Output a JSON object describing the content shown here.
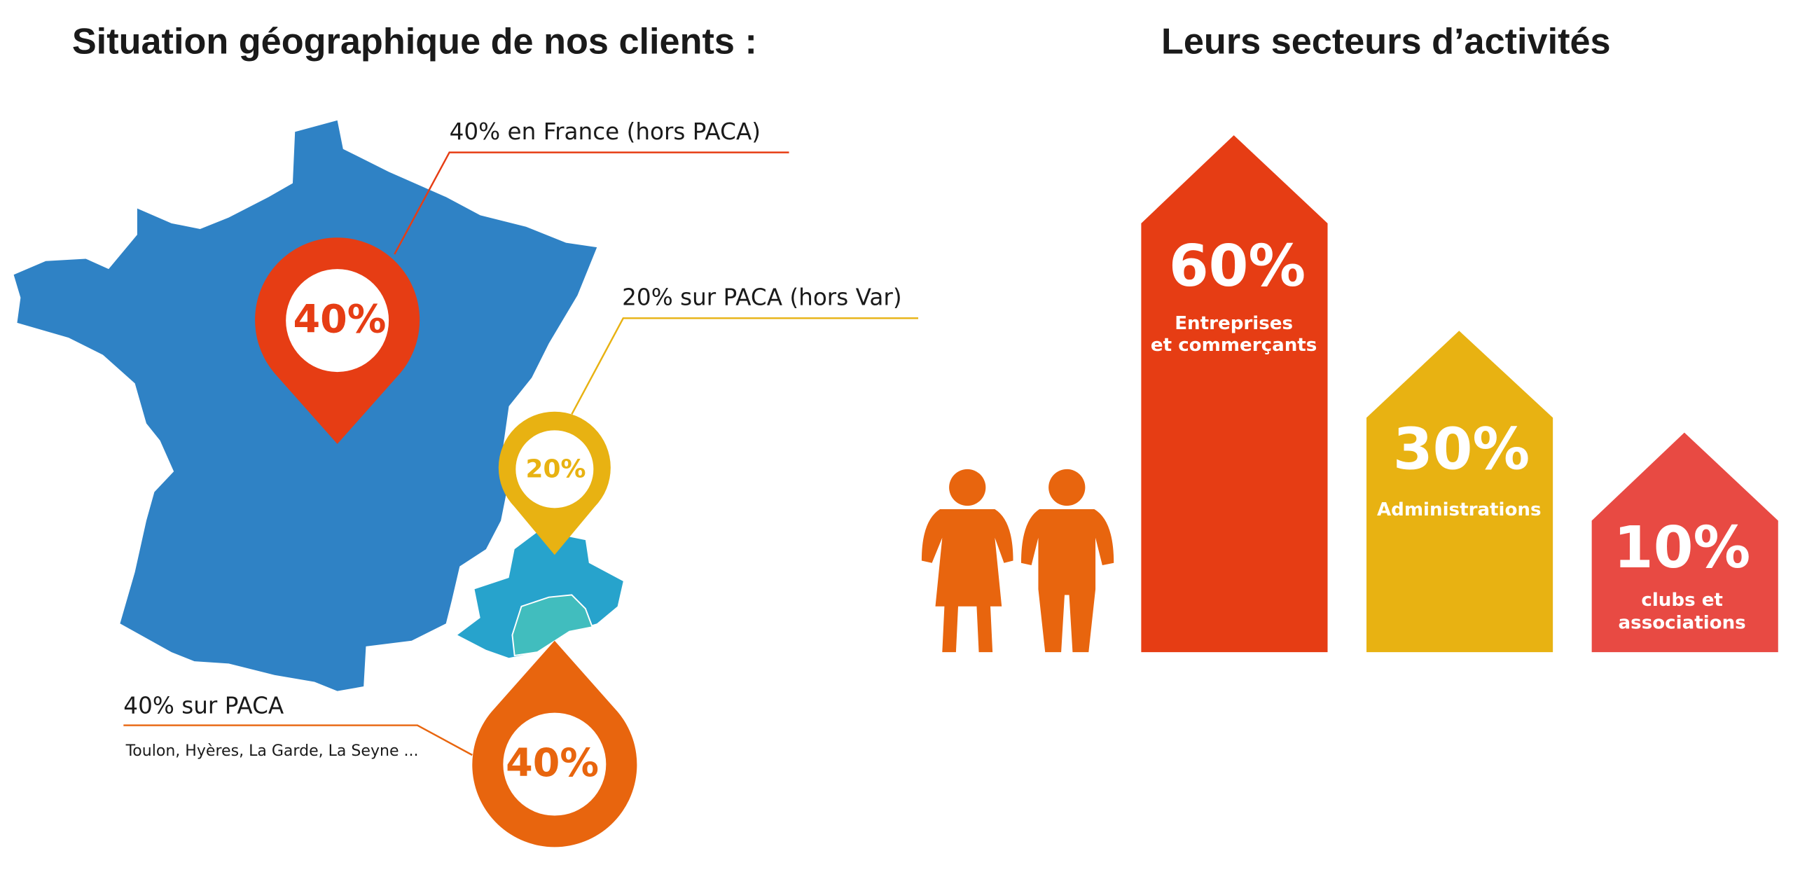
{
  "header": {
    "left_title": "Situation géographique de nos clients :",
    "right_title": "Leurs secteurs d’activités"
  },
  "map": {
    "pins": [
      {
        "label": "40%"
      },
      {
        "label": "20%"
      },
      {
        "label": "40%"
      }
    ],
    "callouts": [
      {
        "text": "40% en France (hors PACA)"
      },
      {
        "text": "20% sur PACA (hors Var)"
      },
      {
        "text": "40% sur PACA",
        "detail": "Toulon, Hyères, La Garde, La Seyne ..."
      }
    ]
  },
  "sectors": [
    {
      "label": "60%",
      "lines": [
        "Entreprises",
        "et commerçants"
      ]
    },
    {
      "label": "30%",
      "lines": [
        "Administrations"
      ]
    },
    {
      "label": "10%",
      "lines": [
        "clubs et",
        "associations"
      ]
    }
  ]
}
